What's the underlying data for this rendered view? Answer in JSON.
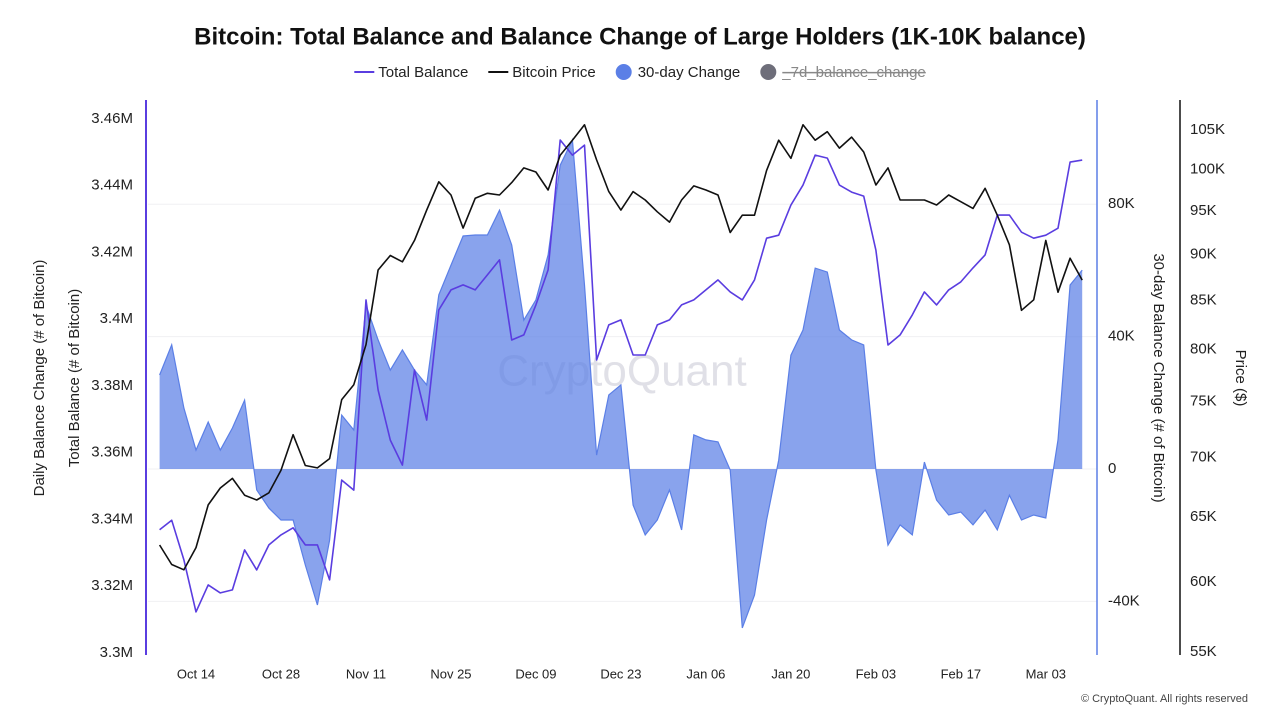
{
  "chart_data": {
    "type": "line",
    "title": "Bitcoin: Total Balance and Balance Change of Large Holders (1K-10K balance)",
    "ylabels": [
      "Daily Balance Change (# of Bitcoin)",
      "Total Balance (# of Bitcoin)"
    ],
    "y2label": "30-day Balance Change (# of Bitcoin)",
    "y3label": "Price ($)",
    "watermark": "CryptoQuant",
    "credit": "© CryptoQuant. All rights reserved",
    "categories": [
      null,
      null,
      null,
      "Oct 14",
      null,
      null,
      null,
      null,
      null,
      null,
      "Oct 28",
      null,
      null,
      null,
      null,
      null,
      null,
      "Nov 11",
      null,
      null,
      null,
      null,
      null,
      null,
      "Nov 25",
      null,
      null,
      null,
      null,
      null,
      null,
      "Dec 09",
      null,
      null,
      null,
      null,
      null,
      null,
      "Dec 23",
      null,
      null,
      null,
      null,
      null,
      null,
      "Jan 06",
      null,
      null,
      null,
      null,
      null,
      null,
      "Jan 20",
      null,
      null,
      null,
      null,
      null,
      null,
      "Feb 03",
      null,
      null,
      null,
      null,
      null,
      null,
      "Feb 17",
      null,
      null,
      null,
      null,
      null,
      null,
      "Mar 03",
      null,
      null,
      null
    ],
    "ylim": [
      3299400,
      3465700
    ],
    "yticks": [
      {
        "value": 3300000,
        "label": "3.3M"
      },
      {
        "value": 3320000,
        "label": "3.32M"
      },
      {
        "value": 3340000,
        "label": "3.34M"
      },
      {
        "value": 3360000,
        "label": "3.36M"
      },
      {
        "value": 3380000,
        "label": "3.38M"
      },
      {
        "value": 3400000,
        "label": "3.4M"
      },
      {
        "value": 3420000,
        "label": "3.42M"
      },
      {
        "value": 3440000,
        "label": "3.44M"
      },
      {
        "value": 3460000,
        "label": "3.46M"
      }
    ],
    "y2lim": [
      -56200,
      111500
    ],
    "y2ticks": [
      {
        "value": -40000,
        "label": "-40K"
      },
      0,
      {
        "value": 40000,
        "label": "40K"
      },
      {
        "value": 80000,
        "label": "80K"
      }
    ],
    "y2grid": true,
    "y3lim": [
      54800,
      109000
    ],
    "y3log": true,
    "y3ticks": [
      {
        "value": 55000,
        "label": "55K"
      },
      {
        "value": 60000,
        "label": "60K"
      },
      {
        "value": 65000,
        "label": "65K"
      },
      {
        "value": 70000,
        "label": "70K"
      },
      {
        "value": 75000,
        "label": "75K"
      },
      {
        "value": 80000,
        "label": "80K"
      },
      {
        "value": 85000,
        "label": "85K"
      },
      {
        "value": 90000,
        "label": "90K"
      },
      {
        "value": 95000,
        "label": "95K"
      },
      {
        "value": 100000,
        "label": "100K"
      },
      {
        "value": 105000,
        "label": "105K"
      }
    ],
    "series": [
      {
        "name": "Total Balance",
        "color": "#5a3de0",
        "axis": "y",
        "type": "line",
        "values": [
          3336900,
          3339800,
          3327900,
          3312300,
          3320400,
          3318000,
          3318900,
          3330900,
          3324900,
          3332400,
          3335400,
          3337500,
          3332400,
          3332400,
          3321900,
          3351800,
          3348800,
          3405800,
          3378800,
          3363800,
          3356300,
          3384800,
          3369800,
          3402800,
          3408800,
          3410300,
          3408800,
          3413300,
          3417800,
          3393800,
          3395300,
          3404300,
          3414800,
          3453700,
          3449200,
          3452200,
          3387800,
          3398300,
          3399800,
          3389300,
          3389300,
          3398300,
          3399800,
          3404300,
          3405800,
          3408800,
          3411800,
          3408200,
          3405800,
          3411800,
          3424300,
          3425200,
          3434200,
          3440200,
          3449200,
          3448300,
          3440200,
          3438100,
          3436900,
          3420700,
          3392300,
          3395300,
          3401300,
          3408200,
          3404300,
          3408800,
          3411200,
          3415400,
          3419300,
          3431200,
          3431200,
          3426100,
          3424300,
          3425200,
          3427300,
          3447100,
          3447700
        ]
      },
      {
        "name": "Bitcoin Price",
        "color": "#111111",
        "axis": "y3",
        "type": "line",
        "values": [
          62800,
          61300,
          60900,
          62600,
          66000,
          67400,
          68200,
          66800,
          66400,
          67000,
          68900,
          72000,
          69300,
          69100,
          69900,
          75200,
          76600,
          80500,
          88300,
          89900,
          89200,
          91600,
          95100,
          98500,
          96900,
          93000,
          96500,
          97100,
          96900,
          98400,
          100200,
          99700,
          97500,
          101800,
          103700,
          105700,
          101200,
          97300,
          95100,
          97300,
          96300,
          94900,
          93700,
          96300,
          98000,
          97500,
          96900,
          92500,
          94500,
          94500,
          99900,
          103700,
          101400,
          105700,
          103700,
          104800,
          102700,
          104100,
          102200,
          98100,
          100200,
          96300,
          96300,
          96300,
          95700,
          96900,
          96100,
          95300,
          97700,
          94500,
          91100,
          84000,
          85100,
          91600,
          85900,
          89600,
          87200
        ]
      },
      {
        "name": "30-day Change",
        "color": "#5b7fe6",
        "axis": "y2",
        "type": "area",
        "values": [
          28400,
          37500,
          18400,
          5700,
          14200,
          5700,
          12400,
          20800,
          -6300,
          -11800,
          -15400,
          -15400,
          -29000,
          -41100,
          -21500,
          16300,
          11800,
          49500,
          39000,
          29900,
          36000,
          29900,
          25400,
          52600,
          61600,
          70400,
          70700,
          70700,
          78200,
          67700,
          45000,
          51100,
          64700,
          91800,
          99400,
          55600,
          4200,
          22400,
          25400,
          -10900,
          -19900,
          -15400,
          -6300,
          -18400,
          10300,
          8800,
          8200,
          -300,
          -48000,
          -38100,
          -15400,
          2700,
          34400,
          42000,
          60700,
          59500,
          42000,
          39000,
          37500,
          -300,
          -23000,
          -16900,
          -19900,
          2100,
          -9400,
          -13900,
          -13000,
          -16900,
          -12400,
          -18400,
          -7900,
          -15400,
          -13900,
          -14800,
          8800,
          55600,
          60100
        ]
      },
      {
        "name": "_7d_balance_change",
        "color": "#6e6e7a",
        "hidden": true
      }
    ]
  }
}
